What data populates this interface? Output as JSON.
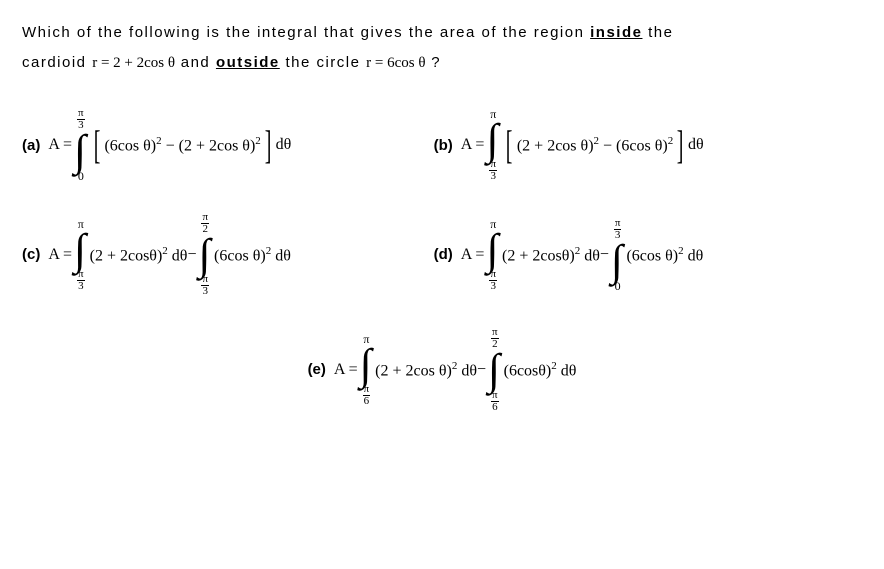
{
  "stem": {
    "line1_a": "Which of the following is the integral that gives the area of the region ",
    "inside": "inside",
    "line1_b": " the",
    "line2_a": "cardioid ",
    "eq1": "r = 2 + 2cos θ",
    "line2_b": " and ",
    "outside": "outside",
    "line2_c": " the circle ",
    "eq2": "r = 6cos θ",
    "line2_d": " ?"
  },
  "sym": {
    "pi": "π",
    "int": "∫",
    "theta": "θ",
    "minus": "−",
    "plus": "+"
  },
  "opt": {
    "a": {
      "label": "(a)",
      "prefix": "A =",
      "lo": "0",
      "hi_num": "π",
      "hi_den": "3",
      "body": "(6cos θ)<span class='sq'>2</span> − (2 + 2cos θ)<span class='sq'>2</span>",
      "tail": "dθ",
      "bracket": true
    },
    "b": {
      "label": "(b)",
      "prefix": "A =",
      "lo_num": "π",
      "lo_den": "3",
      "hi": "π",
      "body": "(2 + 2cos θ)<span class='sq'>2</span> − (6cos θ)<span class='sq'>2</span>",
      "tail": "dθ",
      "bracket": true
    },
    "c": {
      "label": "(c)",
      "prefix": "A =",
      "t1": {
        "lo_num": "π",
        "lo_den": "3",
        "hi": "π",
        "body": "(2 + 2cosθ)<span class='sq'>2</span> dθ"
      },
      "t2": {
        "lo_num": "π",
        "lo_den": "3",
        "hi_num": "π",
        "hi_den": "2",
        "body": "(6cos θ)<span class='sq'>2</span> dθ"
      }
    },
    "d": {
      "label": "(d)",
      "prefix": "A =",
      "t1": {
        "lo_num": "π",
        "lo_den": "3",
        "hi": "π",
        "body": "(2 + 2cosθ)<span class='sq'>2</span> dθ"
      },
      "t2": {
        "lo": "0",
        "hi_num": "π",
        "hi_den": "3",
        "body": "(6cos θ)<span class='sq'>2</span> dθ"
      }
    },
    "e": {
      "label": "(e)",
      "prefix": "A =",
      "t1": {
        "lo_num": "π",
        "lo_den": "6",
        "hi": "π",
        "body": "(2 + 2cos θ)<span class='sq'>2</span> dθ"
      },
      "t2": {
        "lo_num": "π",
        "lo_den": "6",
        "hi_num": "π",
        "hi_den": "2",
        "body": "(6cosθ)<span class='sq'>2</span> dθ"
      }
    }
  }
}
